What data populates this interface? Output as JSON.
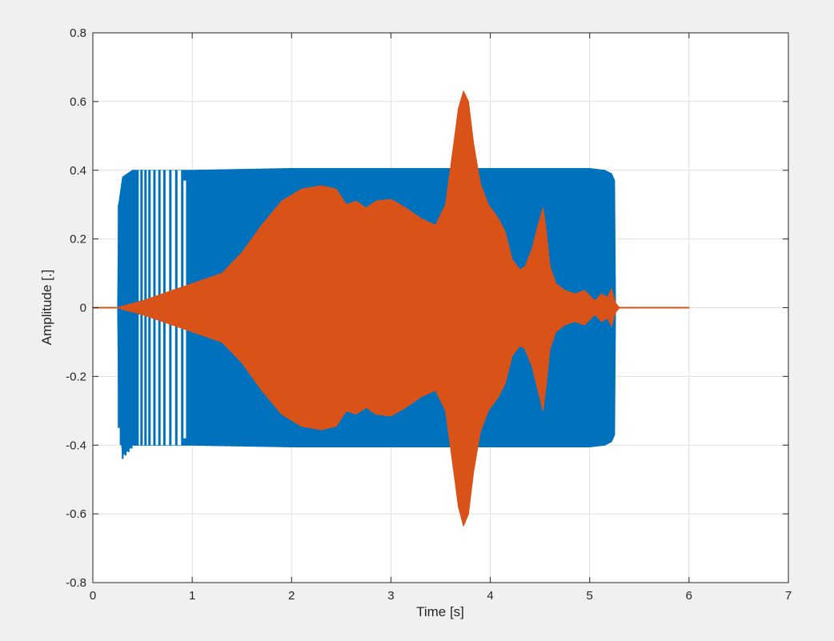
{
  "figure": {
    "background": "#f0f0f0",
    "axes_background": "#ffffff"
  },
  "chart_data": {
    "type": "line",
    "title": "",
    "xlabel": "Time [s]",
    "ylabel": "Amplitude [.]",
    "xlim": [
      0,
      7
    ],
    "ylim": [
      -0.8,
      0.8
    ],
    "xticks": [
      0,
      1,
      2,
      3,
      4,
      5,
      6,
      7
    ],
    "xtick_labels": [
      "0",
      "1",
      "2",
      "3",
      "4",
      "5",
      "6",
      "7"
    ],
    "yticks": [
      -0.8,
      -0.6,
      -0.4,
      -0.2,
      0,
      0.2,
      0.4,
      0.6,
      0.8
    ],
    "ytick_labels": [
      "-0.8",
      "-0.6",
      "-0.4",
      "-0.2",
      "0",
      "0.2",
      "0.4",
      "0.6",
      "0.8"
    ],
    "grid": true,
    "legend": "none",
    "series": [
      {
        "color": "#0072bd",
        "kind": "oscillating-envelope",
        "envelope": {
          "x": [
            0,
            0.25,
            0.26,
            0.3,
            0.4,
            0.6,
            1.0,
            2.0,
            3.0,
            4.0,
            5.0,
            5.15,
            5.22,
            5.25,
            5.26,
            6.0
          ],
          "y_max": [
            0,
            0,
            0.3,
            0.38,
            0.4,
            0.4,
            0.4,
            0.405,
            0.405,
            0.405,
            0.405,
            0.4,
            0.39,
            0.37,
            0,
            0
          ],
          "y_min": [
            0,
            0,
            -0.3,
            -0.43,
            -0.4,
            -0.4,
            -0.4,
            -0.405,
            -0.405,
            -0.405,
            -0.405,
            -0.4,
            -0.39,
            -0.37,
            0,
            0
          ]
        },
        "sparse_spikes": {
          "x": [
            0.26,
            0.28,
            0.3,
            0.33,
            0.36,
            0.39,
            0.42,
            0.45,
            0.49,
            0.53,
            0.57,
            0.62,
            0.67,
            0.72,
            0.78,
            0.84,
            0.9,
            0.95
          ],
          "y_max": [
            0.3,
            0.22,
            0.35,
            0.37,
            0.38,
            0.39,
            0.4,
            0.4,
            0.4,
            0.4,
            0.4,
            0.4,
            0.4,
            0.4,
            0.4,
            0.4,
            0.37,
            0.35
          ],
          "y_min": [
            -0.35,
            -0.4,
            -0.44,
            -0.43,
            -0.42,
            -0.41,
            -0.4,
            -0.4,
            -0.4,
            -0.4,
            -0.4,
            -0.4,
            -0.4,
            -0.4,
            -0.4,
            -0.4,
            -0.38,
            -0.36
          ]
        }
      },
      {
        "color": "#d95319",
        "kind": "oscillating-envelope",
        "envelope": {
          "x": [
            0,
            0.25,
            0.3,
            0.5,
            0.8,
            1.0,
            1.3,
            1.5,
            1.7,
            1.9,
            2.1,
            2.3,
            2.45,
            2.55,
            2.65,
            2.75,
            2.85,
            3.0,
            3.15,
            3.3,
            3.45,
            3.55,
            3.62,
            3.68,
            3.73,
            3.78,
            3.83,
            3.9,
            3.98,
            4.08,
            4.15,
            4.22,
            4.3,
            4.35,
            4.42,
            4.48,
            4.53,
            4.56,
            4.6,
            4.66,
            4.75,
            4.85,
            4.95,
            5.05,
            5.12,
            5.18,
            5.22,
            5.25,
            5.27,
            5.3,
            6.0
          ],
          "y_max": [
            0,
            0,
            0.005,
            0.02,
            0.05,
            0.07,
            0.1,
            0.16,
            0.24,
            0.31,
            0.345,
            0.355,
            0.345,
            0.3,
            0.31,
            0.29,
            0.31,
            0.315,
            0.29,
            0.26,
            0.24,
            0.3,
            0.45,
            0.58,
            0.63,
            0.6,
            0.48,
            0.36,
            0.3,
            0.26,
            0.22,
            0.14,
            0.11,
            0.12,
            0.17,
            0.24,
            0.29,
            0.23,
            0.12,
            0.07,
            0.05,
            0.04,
            0.05,
            0.02,
            0.04,
            0.03,
            0.055,
            0.02,
            0.01,
            0,
            0
          ],
          "y_min": [
            0,
            0,
            -0.005,
            -0.02,
            -0.05,
            -0.07,
            -0.1,
            -0.16,
            -0.24,
            -0.31,
            -0.345,
            -0.355,
            -0.345,
            -0.3,
            -0.31,
            -0.29,
            -0.31,
            -0.315,
            -0.29,
            -0.26,
            -0.24,
            -0.3,
            -0.45,
            -0.58,
            -0.635,
            -0.6,
            -0.48,
            -0.36,
            -0.3,
            -0.26,
            -0.22,
            -0.14,
            -0.11,
            -0.12,
            -0.17,
            -0.24,
            -0.3,
            -0.23,
            -0.12,
            -0.07,
            -0.05,
            -0.04,
            -0.05,
            -0.02,
            -0.04,
            -0.03,
            -0.055,
            -0.02,
            -0.01,
            0,
            0
          ]
        }
      }
    ]
  }
}
